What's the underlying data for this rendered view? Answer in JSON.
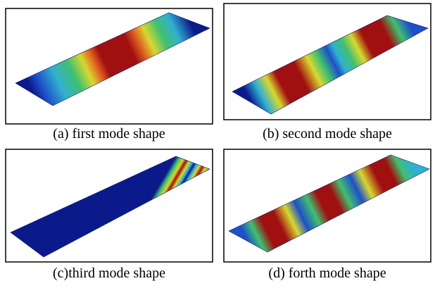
{
  "panels": [
    {
      "caption": "(a) first mode shape"
    },
    {
      "caption": "(b) second mode shape"
    },
    {
      "caption": "(c)third mode shape"
    },
    {
      "caption": "(d) forth mode shape"
    }
  ]
}
